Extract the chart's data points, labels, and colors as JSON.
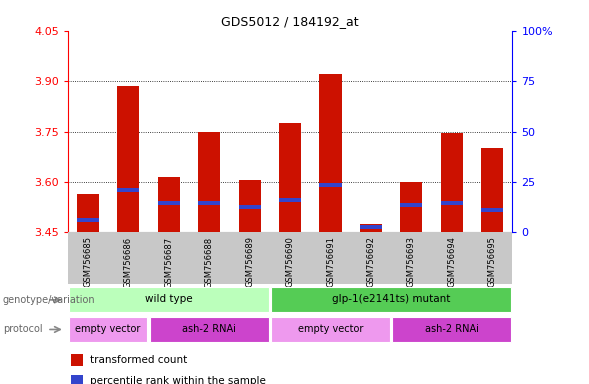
{
  "title": "GDS5012 / 184192_at",
  "samples": [
    "GSM756685",
    "GSM756686",
    "GSM756687",
    "GSM756688",
    "GSM756689",
    "GSM756690",
    "GSM756691",
    "GSM756692",
    "GSM756693",
    "GSM756694",
    "GSM756695"
  ],
  "red_values": [
    3.565,
    3.885,
    3.615,
    3.75,
    3.605,
    3.775,
    3.92,
    3.475,
    3.6,
    3.745,
    3.7
  ],
  "blue_values": [
    3.48,
    3.57,
    3.53,
    3.53,
    3.52,
    3.54,
    3.585,
    3.46,
    3.525,
    3.53,
    3.51
  ],
  "ymin": 3.45,
  "ymax": 4.05,
  "yticks_left": [
    3.45,
    3.6,
    3.75,
    3.9,
    4.05
  ],
  "yticks_right": [
    0,
    25,
    50,
    75,
    100
  ],
  "bar_color_red": "#cc1100",
  "bar_color_blue": "#3344cc",
  "genotype_groups": [
    {
      "label": "wild type",
      "start": 0,
      "end": 5,
      "color": "#bbffbb"
    },
    {
      "label": "glp-1(e2141ts) mutant",
      "start": 5,
      "end": 11,
      "color": "#55cc55"
    }
  ],
  "protocol_groups": [
    {
      "label": "empty vector",
      "start": 0,
      "end": 2,
      "color": "#ee99ee"
    },
    {
      "label": "ash-2 RNAi",
      "start": 2,
      "end": 5,
      "color": "#cc44cc"
    },
    {
      "label": "empty vector",
      "start": 5,
      "end": 8,
      "color": "#ee99ee"
    },
    {
      "label": "ash-2 RNAi",
      "start": 8,
      "end": 11,
      "color": "#cc44cc"
    }
  ],
  "legend_red_label": "transformed count",
  "legend_blue_label": "percentile rank within the sample",
  "label_genotype": "genotype/variation",
  "label_protocol": "protocol",
  "bg_color": "#ffffff",
  "tick_area_color": "#c8c8c8",
  "grid_lines": [
    3.6,
    3.75,
    3.9
  ]
}
